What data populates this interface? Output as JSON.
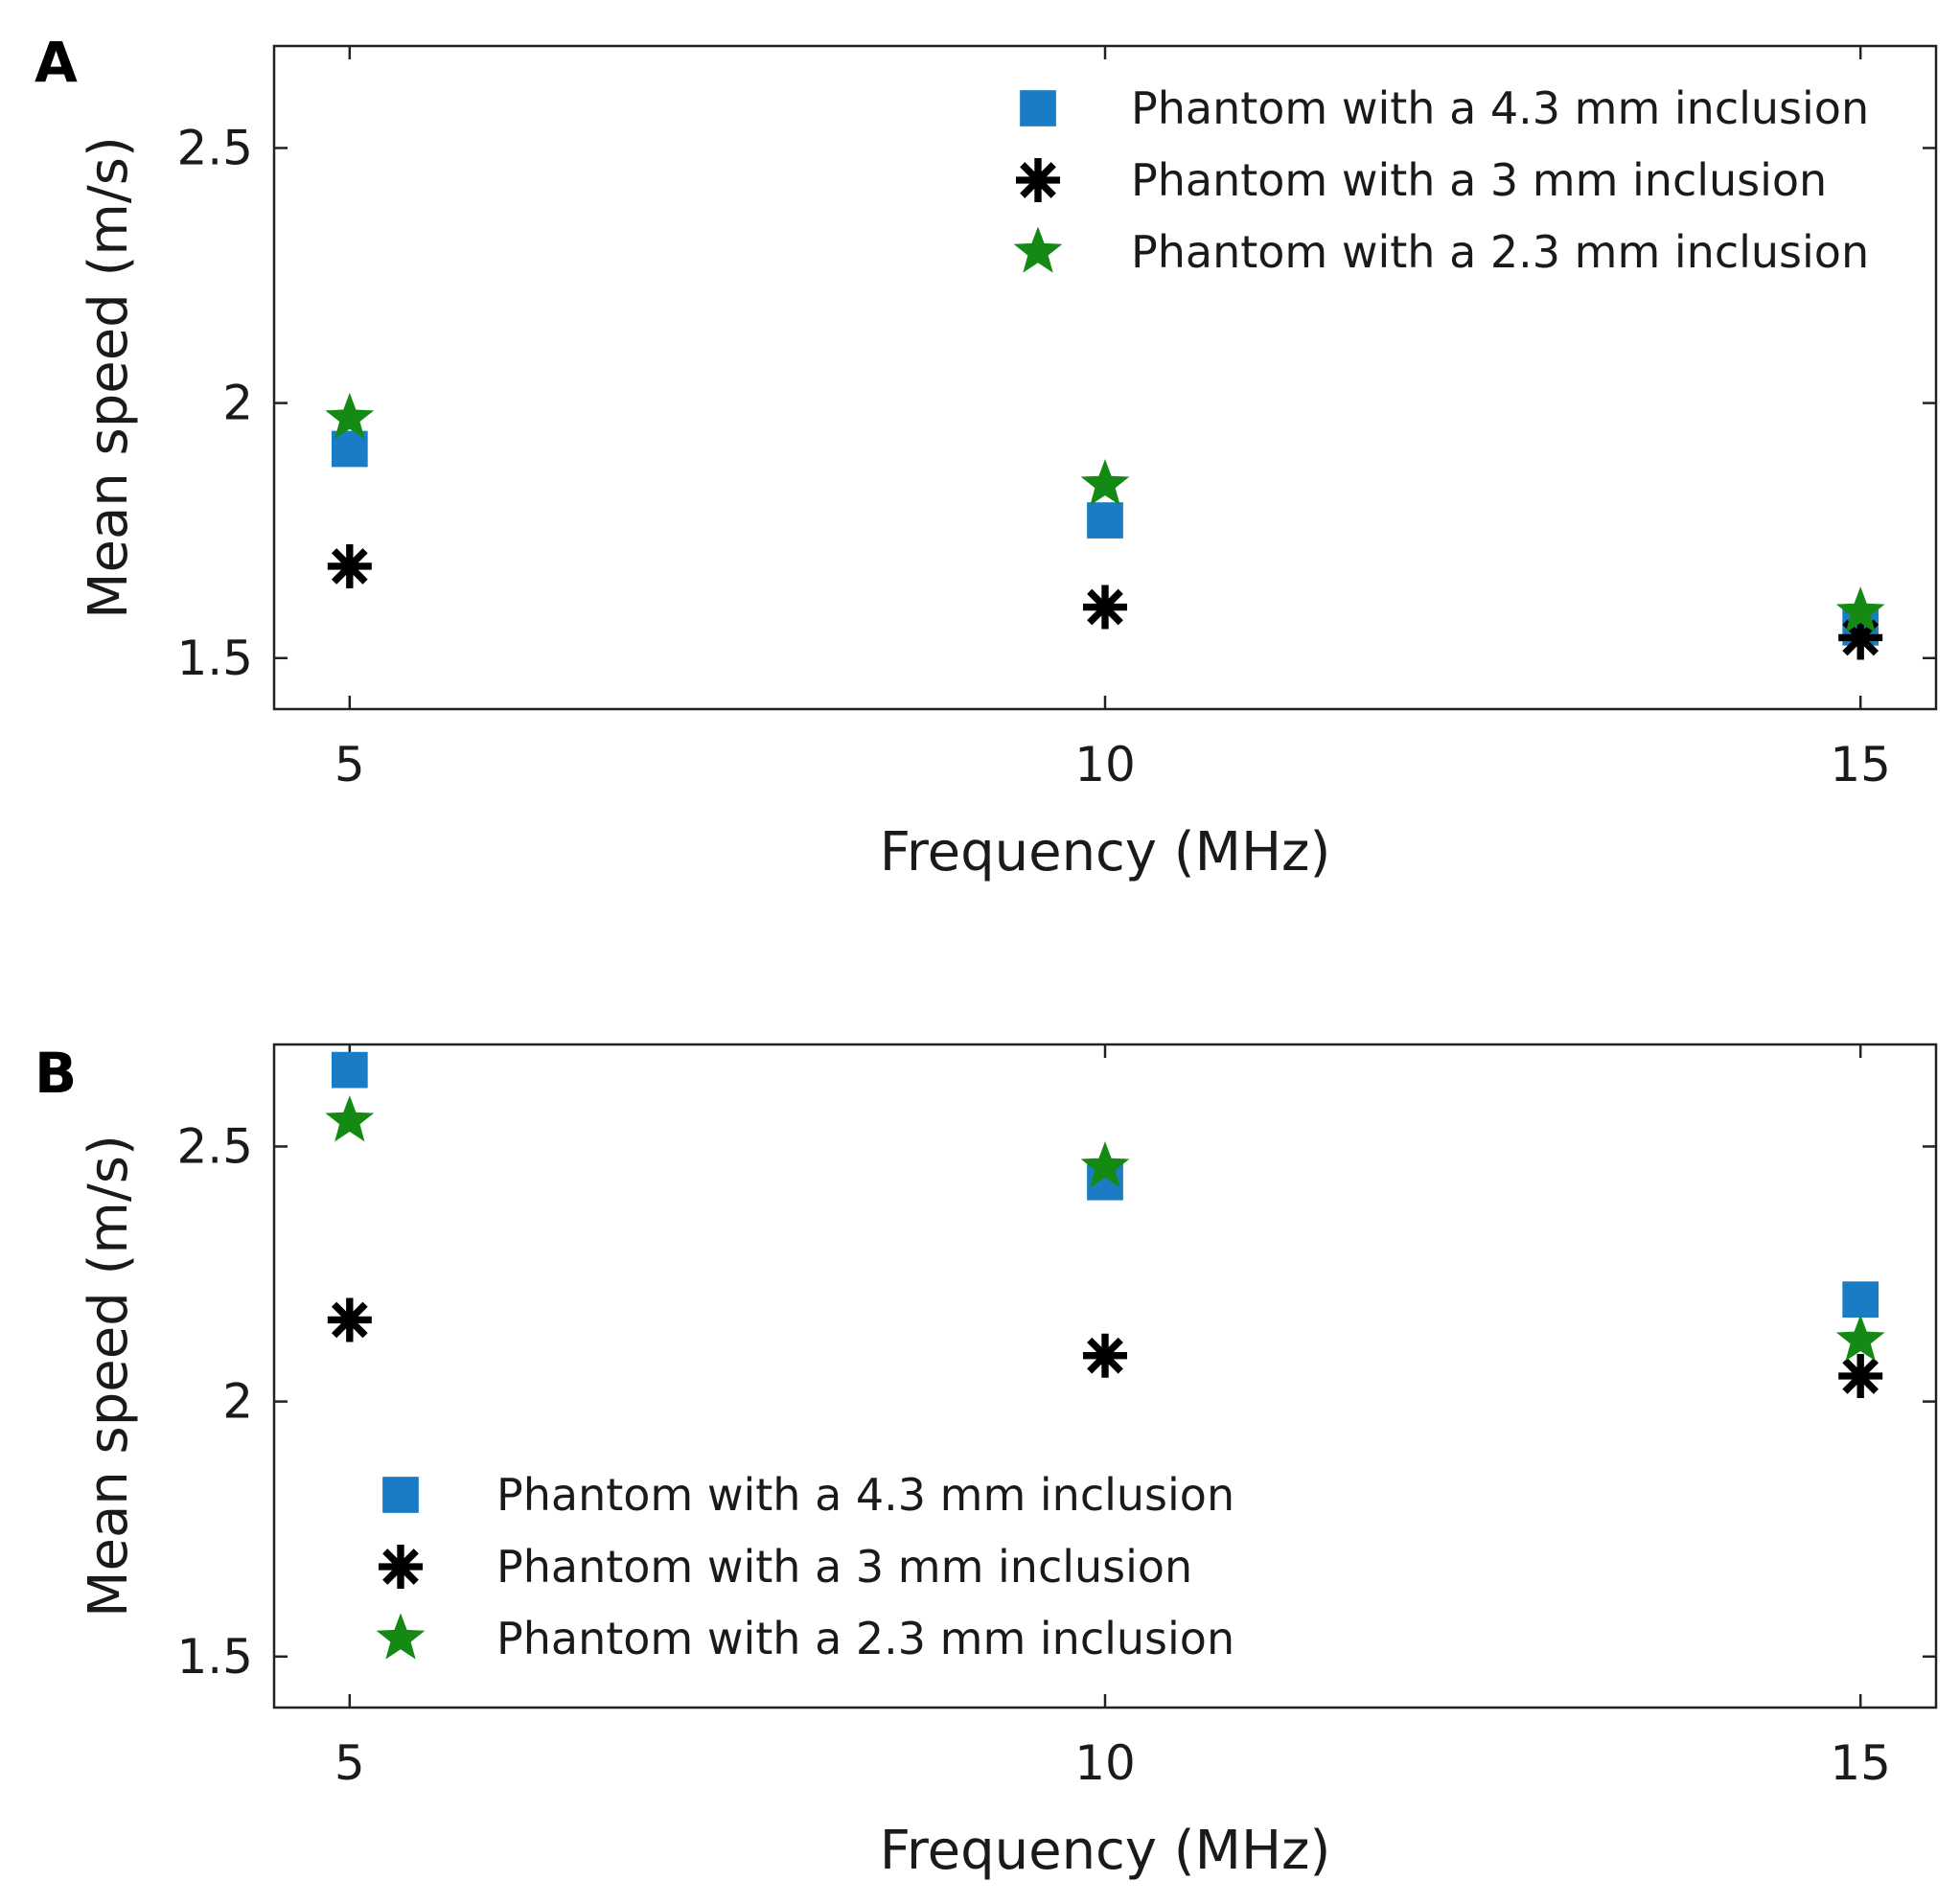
{
  "chart_data": [
    {
      "panel_label": "A",
      "type": "scatter",
      "xlabel": "Frequency (MHz)",
      "ylabel": "Mean speed (m/s)",
      "x": [
        5,
        10,
        15
      ],
      "xlim": [
        4.5,
        15.5
      ],
      "ylim": [
        1.4,
        2.7
      ],
      "xticks": [
        "5",
        "10",
        "15"
      ],
      "yticks": [
        "1.5",
        "2",
        "2.5"
      ],
      "xtick_values": [
        5,
        10,
        15
      ],
      "ytick_values": [
        1.5,
        2.0,
        2.5
      ],
      "grid": false,
      "legend_position": "top-right",
      "series": [
        {
          "name": "Phantom with a 4.3 mm inclusion",
          "marker": "square",
          "color": "#1a7cc4",
          "values": [
            1.91,
            1.77,
            1.56
          ]
        },
        {
          "name": "Phantom with a 3 mm inclusion",
          "marker": "asterisk",
          "color": "#000000",
          "values": [
            1.68,
            1.6,
            1.54
          ]
        },
        {
          "name": "Phantom with a 2.3 mm inclusion",
          "marker": "star",
          "color": "#148a14",
          "values": [
            1.97,
            1.84,
            1.59
          ]
        }
      ]
    },
    {
      "panel_label": "B",
      "type": "scatter",
      "xlabel": "Frequency (MHz)",
      "ylabel": "Mean speed (m/s)",
      "x": [
        5,
        10,
        15
      ],
      "xlim": [
        4.5,
        15.5
      ],
      "ylim": [
        1.4,
        2.7
      ],
      "xticks": [
        "5",
        "10",
        "15"
      ],
      "yticks": [
        "1.5",
        "2",
        "2.5"
      ],
      "xtick_values": [
        5,
        10,
        15
      ],
      "ytick_values": [
        1.5,
        2.0,
        2.5
      ],
      "grid": false,
      "legend_position": "bottom-left",
      "series": [
        {
          "name": "Phantom with a 4.3 mm inclusion",
          "marker": "square",
          "color": "#1a7cc4",
          "values": [
            2.65,
            2.43,
            2.2
          ]
        },
        {
          "name": "Phantom with a 3 mm inclusion",
          "marker": "asterisk",
          "color": "#000000",
          "values": [
            2.16,
            2.09,
            2.05
          ]
        },
        {
          "name": "Phantom with a 2.3 mm inclusion",
          "marker": "star",
          "color": "#148a14",
          "values": [
            2.55,
            2.46,
            2.12
          ]
        }
      ]
    }
  ]
}
